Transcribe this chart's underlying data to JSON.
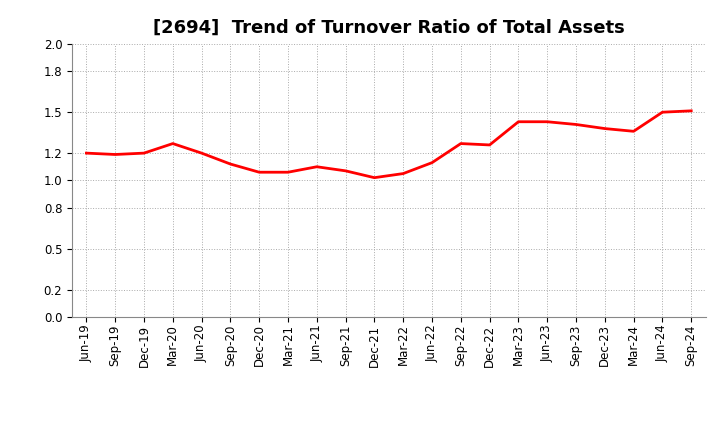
{
  "title": "[2694]  Trend of Turnover Ratio of Total Assets",
  "labels": [
    "Jun-19",
    "Sep-19",
    "Dec-19",
    "Mar-20",
    "Jun-20",
    "Sep-20",
    "Dec-20",
    "Mar-21",
    "Jun-21",
    "Sep-21",
    "Dec-21",
    "Mar-22",
    "Jun-22",
    "Sep-22",
    "Dec-22",
    "Mar-23",
    "Jun-23",
    "Sep-23",
    "Dec-23",
    "Mar-24",
    "Jun-24",
    "Sep-24"
  ],
  "values": [
    1.2,
    1.19,
    1.2,
    1.27,
    1.2,
    1.12,
    1.06,
    1.06,
    1.1,
    1.07,
    1.02,
    1.05,
    1.13,
    1.27,
    1.26,
    1.43,
    1.43,
    1.41,
    1.38,
    1.36,
    1.5,
    1.51
  ],
  "line_color": "#FF0000",
  "line_width": 2.0,
  "ylim": [
    0.0,
    2.0
  ],
  "yticks": [
    0.0,
    0.2,
    0.5,
    0.8,
    1.0,
    1.2,
    1.5,
    1.8,
    2.0
  ],
  "background_color": "#FFFFFF",
  "grid_color": "#AAAAAA",
  "title_fontsize": 13,
  "tick_fontsize": 8.5
}
